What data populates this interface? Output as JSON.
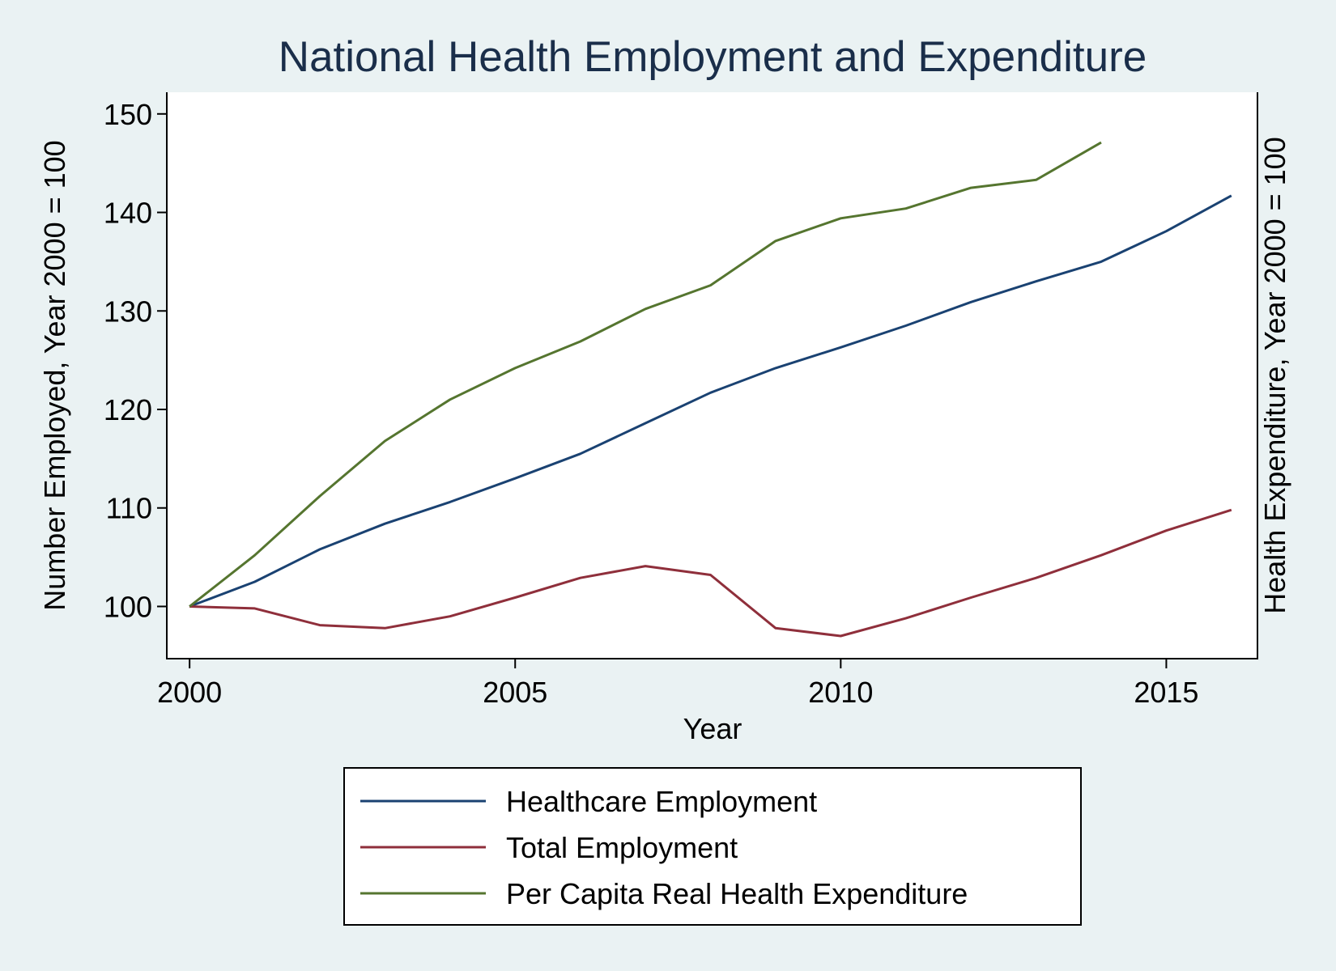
{
  "chart_data": {
    "type": "line",
    "title": "National Health Employment and Expenditure",
    "xlabel": "Year",
    "ylabel": "Number Employed, Year 2000 = 100",
    "ylabel_right": "Health Expenditure, Year 2000 = 100",
    "xlim": [
      1999.65,
      2016.4
    ],
    "ylim": [
      94.7,
      152.2
    ],
    "x_ticks": [
      2000,
      2005,
      2010,
      2015
    ],
    "y_ticks": [
      100,
      110,
      120,
      130,
      140,
      150
    ],
    "grid": false,
    "legend_position": "bottom",
    "series": [
      {
        "name": "Healthcare Employment",
        "color": "#1a4272",
        "x": [
          2000,
          2001,
          2002,
          2003,
          2004,
          2005,
          2006,
          2007,
          2008,
          2009,
          2010,
          2011,
          2012,
          2013,
          2014,
          2015,
          2016
        ],
        "values": [
          100,
          102.5,
          105.8,
          108.4,
          110.6,
          113.0,
          115.5,
          118.6,
          121.7,
          124.2,
          126.3,
          128.5,
          130.9,
          133.0,
          135.0,
          138.1,
          141.7
        ]
      },
      {
        "name": "Total Employment",
        "color": "#8f2f3b",
        "x": [
          2000,
          2001,
          2002,
          2003,
          2004,
          2005,
          2006,
          2007,
          2008,
          2009,
          2010,
          2011,
          2012,
          2013,
          2014,
          2015,
          2016
        ],
        "values": [
          100,
          99.8,
          98.1,
          97.8,
          99.0,
          100.9,
          102.9,
          104.1,
          103.2,
          97.8,
          97.0,
          98.8,
          100.9,
          102.9,
          105.2,
          107.7,
          109.8
        ]
      },
      {
        "name": "Per Capita Real Health Expenditure",
        "color": "#55752f",
        "x": [
          2000,
          2001,
          2002,
          2003,
          2004,
          2005,
          2006,
          2007,
          2008,
          2009,
          2010,
          2011,
          2012,
          2013,
          2014
        ],
        "values": [
          100,
          105.2,
          111.2,
          116.8,
          121.0,
          124.2,
          126.9,
          130.2,
          132.6,
          137.1,
          139.4,
          140.4,
          142.5,
          143.3,
          147.1
        ]
      }
    ]
  }
}
